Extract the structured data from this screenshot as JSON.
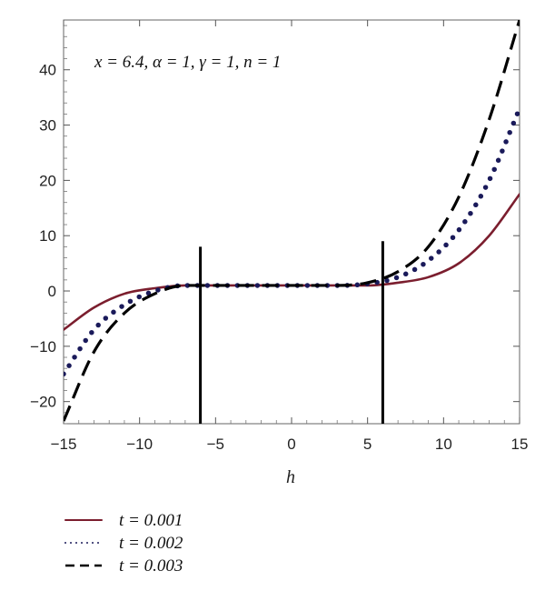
{
  "chart_data": {
    "type": "line",
    "title": "",
    "annotation": "x = 6.4, α = 1, γ = 1, n = 1",
    "xlabel": "h",
    "ylabel": "",
    "xlim": [
      -15,
      15
    ],
    "ylim": [
      -24,
      49
    ],
    "xticks": [
      -15,
      -10,
      -5,
      0,
      5,
      10,
      15
    ],
    "xtick_labels": [
      "−15",
      "−10",
      "−5",
      "0",
      "5",
      "10",
      "15"
    ],
    "yticks": [
      -20,
      -10,
      0,
      10,
      20,
      30,
      40
    ],
    "ytick_labels": [
      "−20",
      "−10",
      "0",
      "10",
      "20",
      "30",
      "40"
    ],
    "grid": false,
    "legend_position": "bottom-left",
    "vertical_lines": [
      {
        "x": -6,
        "y_from": -24,
        "y_to": 8
      },
      {
        "x": 6,
        "y_from": -24,
        "y_to": 9
      }
    ],
    "series": [
      {
        "name": "t = 0.001",
        "color": "#7b1e2e",
        "dash": "solid",
        "x": [
          -15,
          -13,
          -11,
          -9,
          -7,
          -5,
          -3,
          0,
          3,
          5,
          7,
          9,
          11,
          13,
          15
        ],
        "y": [
          -7,
          -3,
          -0.5,
          0.5,
          1,
          1,
          1,
          1,
          1,
          1,
          1.5,
          2.5,
          5,
          10,
          17.5
        ]
      },
      {
        "name": "t = 0.002",
        "color": "#1a1a5a",
        "dash": "dotted",
        "x": [
          -15,
          -13,
          -11,
          -9,
          -7,
          -5,
          -3,
          0,
          3,
          5,
          7,
          9,
          11,
          13,
          15
        ],
        "y": [
          -15,
          -7,
          -2.5,
          0,
          1,
          1,
          1,
          1,
          1,
          1.3,
          2.5,
          5.5,
          11,
          20,
          33
        ]
      },
      {
        "name": "t = 0.003",
        "color": "#000000",
        "dash": "dashed",
        "x": [
          -15,
          -13,
          -11,
          -9,
          -7,
          -5,
          -3,
          0,
          3,
          5,
          7,
          9,
          11,
          13,
          15
        ],
        "y": [
          -23.5,
          -11,
          -4,
          -0.5,
          1,
          1,
          1,
          1,
          1,
          1.5,
          3.5,
          8,
          17,
          31,
          49
        ]
      }
    ]
  }
}
